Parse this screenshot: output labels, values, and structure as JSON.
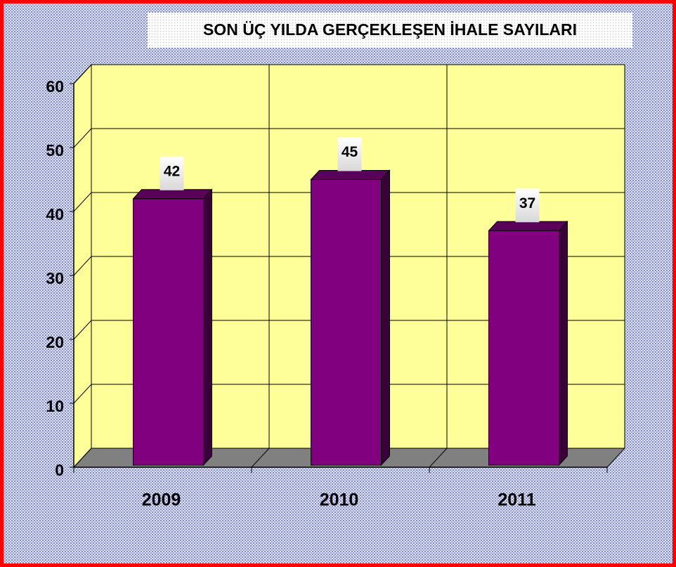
{
  "chart_data": {
    "type": "bar",
    "title": "SON ÜÇ YILDA GERÇEKLEŞEN İHALE SAYILARI",
    "categories": [
      "2009",
      "2010",
      "2011"
    ],
    "values": [
      42,
      45,
      37
    ],
    "color": "#800080",
    "ylim": [
      0,
      60
    ],
    "yticks": [
      0,
      10,
      20,
      30,
      40,
      50,
      60
    ],
    "grid": true
  }
}
